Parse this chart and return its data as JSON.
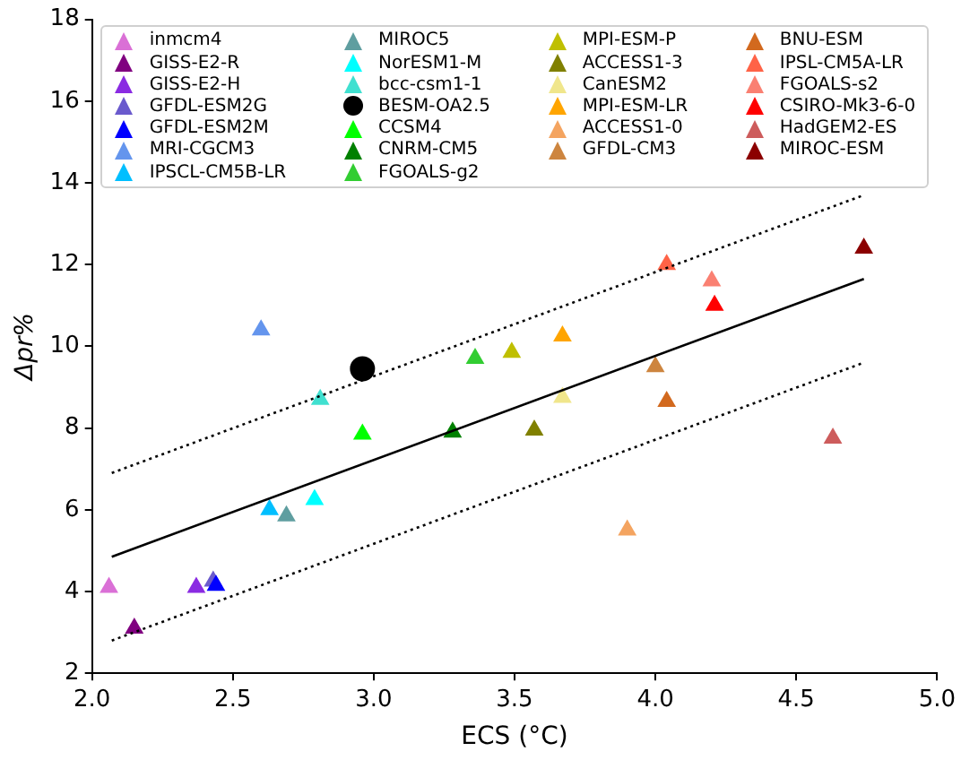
{
  "chart_data": {
    "type": "scatter",
    "xlabel": "ECS (°C)",
    "ylabel": "Δpr%",
    "xlim": [
      2.0,
      5.0
    ],
    "ylim": [
      2,
      18
    ],
    "xticks": [
      {
        "value": 2,
        "label": "2.0"
      },
      {
        "value": 2.5,
        "label": "2.5"
      },
      {
        "value": 3,
        "label": "3.0"
      },
      {
        "value": 3.5,
        "label": "3.5"
      },
      {
        "value": 4,
        "label": "4.0"
      },
      {
        "value": 4.5,
        "label": "4.5"
      },
      {
        "value": 5,
        "label": "5.0"
      }
    ],
    "yticks": [
      2,
      4,
      6,
      8,
      10,
      12,
      14,
      16,
      18
    ],
    "grid": false,
    "legend": "top",
    "marker": "triangle",
    "series": [
      {
        "name": "inmcm4",
        "color": "#da70d6",
        "x": [
          2.06
        ],
        "values": [
          4.1
        ]
      },
      {
        "name": "GISS-E2-R",
        "color": "#800080",
        "x": [
          2.15
        ],
        "values": [
          3.1
        ]
      },
      {
        "name": "GISS-E2-H",
        "color": "#8a2be2",
        "x": [
          2.37
        ],
        "values": [
          4.1
        ]
      },
      {
        "name": "GFDL-ESM2G",
        "color": "#6a5acd",
        "x": [
          2.43
        ],
        "values": [
          4.25
        ]
      },
      {
        "name": "GFDL-ESM2M",
        "color": "#0000ff",
        "x": [
          2.44
        ],
        "values": [
          4.15
        ]
      },
      {
        "name": "MRI-CGCM3",
        "color": "#6495ed",
        "x": [
          2.6
        ],
        "values": [
          10.4
        ]
      },
      {
        "name": "IPSCL-CM5B-LR",
        "color": "#00bfff",
        "x": [
          2.63
        ],
        "values": [
          6.0
        ]
      },
      {
        "name": "MIROC5",
        "color": "#5f9ea0",
        "x": [
          2.69
        ],
        "values": [
          5.85
        ]
      },
      {
        "name": "NorESM1-M",
        "color": "#00ffff",
        "x": [
          2.79
        ],
        "values": [
          6.25
        ]
      },
      {
        "name": "bcc-csm1-1",
        "color": "#40e0d0",
        "x": [
          2.81
        ],
        "values": [
          8.7
        ]
      },
      {
        "name": "BESM-OA2.5",
        "color": "#000000",
        "x": [
          2.96
        ],
        "values": [
          9.45
        ],
        "marker": "circle"
      },
      {
        "name": "CCSM4",
        "color": "#00ff00",
        "x": [
          2.96
        ],
        "values": [
          7.85
        ]
      },
      {
        "name": "CNRM-CM5",
        "color": "#008000",
        "x": [
          3.28
        ],
        "values": [
          7.9
        ]
      },
      {
        "name": "FGOALS-g2",
        "color": "#32cd32",
        "x": [
          3.36
        ],
        "values": [
          9.7
        ]
      },
      {
        "name": "MPI-ESM-P",
        "color": "#bfbf00",
        "x": [
          3.49
        ],
        "values": [
          9.85
        ]
      },
      {
        "name": "ACCESS1-3",
        "color": "#808000",
        "x": [
          3.57
        ],
        "values": [
          7.95
        ]
      },
      {
        "name": "CanESM2",
        "color": "#f0e68c",
        "x": [
          3.67
        ],
        "values": [
          8.75
        ]
      },
      {
        "name": "MPI-ESM-LR",
        "color": "#ffa500",
        "x": [
          3.67
        ],
        "values": [
          10.25
        ]
      },
      {
        "name": "ACCESS1-0",
        "color": "#f4a460",
        "x": [
          3.9
        ],
        "values": [
          5.5
        ]
      },
      {
        "name": "GFDL-CM3",
        "color": "#cd853f",
        "x": [
          4.0
        ],
        "values": [
          9.5
        ]
      },
      {
        "name": "BNU-ESM",
        "color": "#d2691e",
        "x": [
          4.04
        ],
        "values": [
          8.65
        ]
      },
      {
        "name": "IPSL-CM5A-LR",
        "color": "#ff6347",
        "x": [
          4.04
        ],
        "values": [
          12.0
        ]
      },
      {
        "name": "FGOALS-s2",
        "color": "#fa8072",
        "x": [
          4.2
        ],
        "values": [
          11.6
        ]
      },
      {
        "name": "CSIRO-Mk3-6-0",
        "color": "#ff0000",
        "x": [
          4.21
        ],
        "values": [
          11.0
        ]
      },
      {
        "name": "HadGEM2-ES",
        "color": "#cd5c5c",
        "x": [
          4.63
        ],
        "values": [
          7.75
        ]
      },
      {
        "name": "MIROC-ESM",
        "color": "#8b0000",
        "x": [
          4.74
        ],
        "values": [
          12.4
        ]
      },
      {
        "type": "line",
        "color": "#000000",
        "x": [
          2.07,
          4.74
        ],
        "values": [
          4.85,
          11.65
        ],
        "marker": "none",
        "line_style": "solid"
      },
      {
        "type": "line",
        "color": "#000000",
        "x": [
          2.07,
          4.74
        ],
        "values": [
          6.9,
          13.7
        ],
        "marker": "none",
        "line_style": "dotted"
      },
      {
        "type": "line",
        "color": "#000000",
        "x": [
          2.07,
          4.74
        ],
        "values": [
          2.8,
          9.6
        ],
        "marker": "none",
        "line_style": "dotted"
      }
    ]
  }
}
